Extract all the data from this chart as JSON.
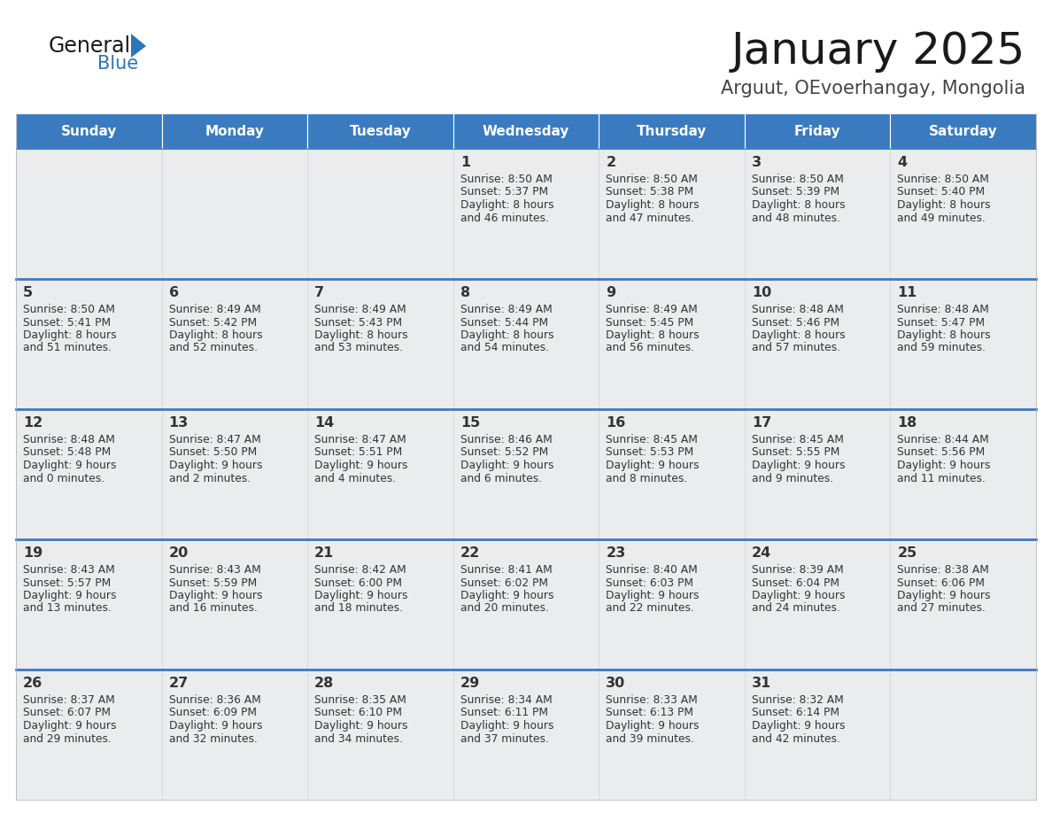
{
  "title": "January 2025",
  "subtitle": "Arguut, OEvoerhangay, Mongolia",
  "header_color": "#3A7BBF",
  "header_text_color": "#FFFFFF",
  "cell_bg": "#EAECEE",
  "separator_color": "#3A7BBF",
  "text_color": "#333333",
  "day_names": [
    "Sunday",
    "Monday",
    "Tuesday",
    "Wednesday",
    "Thursday",
    "Friday",
    "Saturday"
  ],
  "calendar": [
    [
      null,
      null,
      null,
      {
        "day": 1,
        "sunrise": "8:50 AM",
        "sunset": "5:37 PM",
        "daylight_h": "8 hours",
        "daylight_m": "and 46 minutes."
      },
      {
        "day": 2,
        "sunrise": "8:50 AM",
        "sunset": "5:38 PM",
        "daylight_h": "8 hours",
        "daylight_m": "and 47 minutes."
      },
      {
        "day": 3,
        "sunrise": "8:50 AM",
        "sunset": "5:39 PM",
        "daylight_h": "8 hours",
        "daylight_m": "and 48 minutes."
      },
      {
        "day": 4,
        "sunrise": "8:50 AM",
        "sunset": "5:40 PM",
        "daylight_h": "8 hours",
        "daylight_m": "and 49 minutes."
      }
    ],
    [
      {
        "day": 5,
        "sunrise": "8:50 AM",
        "sunset": "5:41 PM",
        "daylight_h": "8 hours",
        "daylight_m": "and 51 minutes."
      },
      {
        "day": 6,
        "sunrise": "8:49 AM",
        "sunset": "5:42 PM",
        "daylight_h": "8 hours",
        "daylight_m": "and 52 minutes."
      },
      {
        "day": 7,
        "sunrise": "8:49 AM",
        "sunset": "5:43 PM",
        "daylight_h": "8 hours",
        "daylight_m": "and 53 minutes."
      },
      {
        "day": 8,
        "sunrise": "8:49 AM",
        "sunset": "5:44 PM",
        "daylight_h": "8 hours",
        "daylight_m": "and 54 minutes."
      },
      {
        "day": 9,
        "sunrise": "8:49 AM",
        "sunset": "5:45 PM",
        "daylight_h": "8 hours",
        "daylight_m": "and 56 minutes."
      },
      {
        "day": 10,
        "sunrise": "8:48 AM",
        "sunset": "5:46 PM",
        "daylight_h": "8 hours",
        "daylight_m": "and 57 minutes."
      },
      {
        "day": 11,
        "sunrise": "8:48 AM",
        "sunset": "5:47 PM",
        "daylight_h": "8 hours",
        "daylight_m": "and 59 minutes."
      }
    ],
    [
      {
        "day": 12,
        "sunrise": "8:48 AM",
        "sunset": "5:48 PM",
        "daylight_h": "9 hours",
        "daylight_m": "and 0 minutes."
      },
      {
        "day": 13,
        "sunrise": "8:47 AM",
        "sunset": "5:50 PM",
        "daylight_h": "9 hours",
        "daylight_m": "and 2 minutes."
      },
      {
        "day": 14,
        "sunrise": "8:47 AM",
        "sunset": "5:51 PM",
        "daylight_h": "9 hours",
        "daylight_m": "and 4 minutes."
      },
      {
        "day": 15,
        "sunrise": "8:46 AM",
        "sunset": "5:52 PM",
        "daylight_h": "9 hours",
        "daylight_m": "and 6 minutes."
      },
      {
        "day": 16,
        "sunrise": "8:45 AM",
        "sunset": "5:53 PM",
        "daylight_h": "9 hours",
        "daylight_m": "and 8 minutes."
      },
      {
        "day": 17,
        "sunrise": "8:45 AM",
        "sunset": "5:55 PM",
        "daylight_h": "9 hours",
        "daylight_m": "and 9 minutes."
      },
      {
        "day": 18,
        "sunrise": "8:44 AM",
        "sunset": "5:56 PM",
        "daylight_h": "9 hours",
        "daylight_m": "and 11 minutes."
      }
    ],
    [
      {
        "day": 19,
        "sunrise": "8:43 AM",
        "sunset": "5:57 PM",
        "daylight_h": "9 hours",
        "daylight_m": "and 13 minutes."
      },
      {
        "day": 20,
        "sunrise": "8:43 AM",
        "sunset": "5:59 PM",
        "daylight_h": "9 hours",
        "daylight_m": "and 16 minutes."
      },
      {
        "day": 21,
        "sunrise": "8:42 AM",
        "sunset": "6:00 PM",
        "daylight_h": "9 hours",
        "daylight_m": "and 18 minutes."
      },
      {
        "day": 22,
        "sunrise": "8:41 AM",
        "sunset": "6:02 PM",
        "daylight_h": "9 hours",
        "daylight_m": "and 20 minutes."
      },
      {
        "day": 23,
        "sunrise": "8:40 AM",
        "sunset": "6:03 PM",
        "daylight_h": "9 hours",
        "daylight_m": "and 22 minutes."
      },
      {
        "day": 24,
        "sunrise": "8:39 AM",
        "sunset": "6:04 PM",
        "daylight_h": "9 hours",
        "daylight_m": "and 24 minutes."
      },
      {
        "day": 25,
        "sunrise": "8:38 AM",
        "sunset": "6:06 PM",
        "daylight_h": "9 hours",
        "daylight_m": "and 27 minutes."
      }
    ],
    [
      {
        "day": 26,
        "sunrise": "8:37 AM",
        "sunset": "6:07 PM",
        "daylight_h": "9 hours",
        "daylight_m": "and 29 minutes."
      },
      {
        "day": 27,
        "sunrise": "8:36 AM",
        "sunset": "6:09 PM",
        "daylight_h": "9 hours",
        "daylight_m": "and 32 minutes."
      },
      {
        "day": 28,
        "sunrise": "8:35 AM",
        "sunset": "6:10 PM",
        "daylight_h": "9 hours",
        "daylight_m": "and 34 minutes."
      },
      {
        "day": 29,
        "sunrise": "8:34 AM",
        "sunset": "6:11 PM",
        "daylight_h": "9 hours",
        "daylight_m": "and 37 minutes."
      },
      {
        "day": 30,
        "sunrise": "8:33 AM",
        "sunset": "6:13 PM",
        "daylight_h": "9 hours",
        "daylight_m": "and 39 minutes."
      },
      {
        "day": 31,
        "sunrise": "8:32 AM",
        "sunset": "6:14 PM",
        "daylight_h": "9 hours",
        "daylight_m": "and 42 minutes."
      },
      null
    ]
  ],
  "fig_width": 11.88,
  "fig_height": 9.18,
  "dpi": 100
}
